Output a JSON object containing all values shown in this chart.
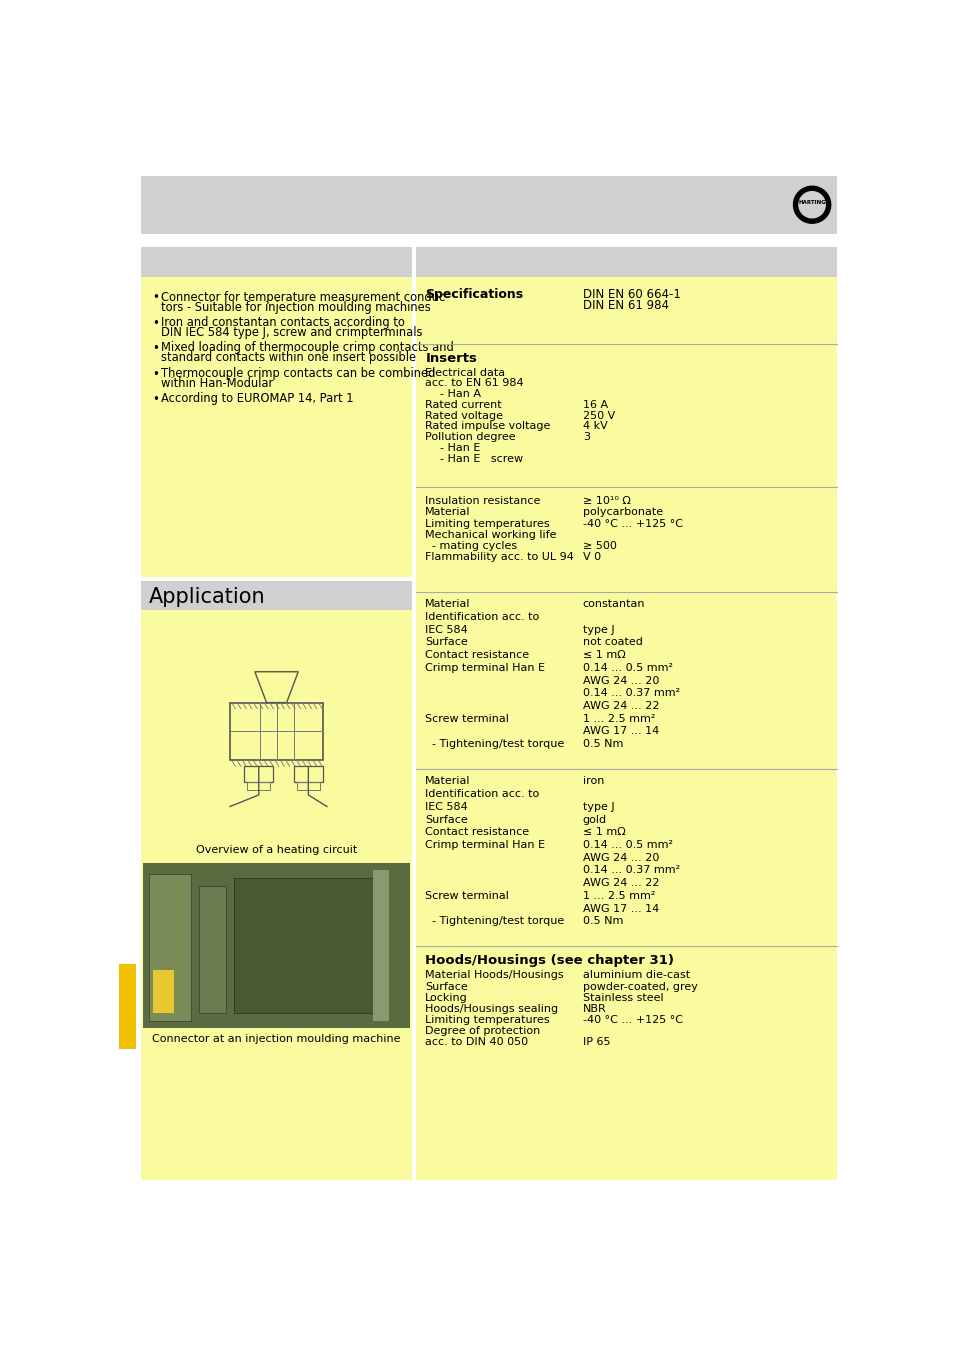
{
  "bg_color": "#ffffff",
  "yellow_bg": "#FAFA9E",
  "gray_bg": "#D0D0D0",
  "features_bullets": [
    "Connector for temperature measurement conduc\ntors - Suitable for injection moulding machines",
    "Iron and constantan contacts according to\nDIN IEC 584 type J, screw and crimpterminals",
    "Mixed loading of thermocouple crimp contacts and\nstandard contacts within one insert possible",
    "Thermocouple crimp contacts can be combined\nwithin Han-Modular",
    "According to EUROMAP 14, Part 1"
  ],
  "specs_label": "Specifications",
  "specs_value": "DIN EN 60 664-1\nDIN EN 61 984",
  "inserts_rows": [
    {
      "label": "Electrical data",
      "value": "",
      "indent": 0
    },
    {
      "label": "acc. to EN 61 984",
      "value": "",
      "indent": 0
    },
    {
      "label": "  - Han A",
      "value": "",
      "indent": 1
    },
    {
      "label": "Rated current",
      "value": "16 A",
      "indent": 0
    },
    {
      "label": "Rated voltage",
      "value": "250 V",
      "indent": 0
    },
    {
      "label": "Rated impulse voltage",
      "value": "4 kV",
      "indent": 0
    },
    {
      "label": "Pollution degree",
      "value": "3",
      "indent": 0
    },
    {
      "label": "  - Han E",
      "value": "",
      "indent": 1
    },
    {
      "label": "  - Han E   screw",
      "value": "",
      "indent": 1
    }
  ],
  "insulation_rows": [
    {
      "label": "Insulation resistance",
      "value": "≥ 10¹⁰ Ω"
    },
    {
      "label": "Material",
      "value": "polycarbonate"
    },
    {
      "label": "Limiting temperatures",
      "value": "-40 °C ... +125 °C"
    },
    {
      "label": "Mechanical working life",
      "value": ""
    },
    {
      "label": "  - mating cycles",
      "value": "≥ 500"
    },
    {
      "label": "Flammability acc. to UL 94",
      "value": "V 0"
    }
  ],
  "constantan_rows": [
    {
      "label": "Material",
      "value": "constantan"
    },
    {
      "label": "Identification acc. to",
      "value": ""
    },
    {
      "label": "IEC 584",
      "value": "type J"
    },
    {
      "label": "Surface",
      "value": "not coated"
    },
    {
      "label": "Contact resistance",
      "value": "≤ 1 mΩ"
    },
    {
      "label": "Crimp terminal Han E",
      "value": "0.14 ... 0.5 mm²"
    },
    {
      "label": "",
      "value": "AWG 24 ... 20"
    },
    {
      "label": "",
      "value": "0.14 ... 0.37 mm²"
    },
    {
      "label": "",
      "value": "AWG 24 ... 22"
    },
    {
      "label": "Screw terminal",
      "value": "1 ... 2.5 mm²"
    },
    {
      "label": "",
      "value": "AWG 17 ... 14"
    },
    {
      "label": "  - Tightening/test torque",
      "value": "0.5 Nm"
    }
  ],
  "iron_rows": [
    {
      "label": "Material",
      "value": "iron"
    },
    {
      "label": "Identification acc. to",
      "value": ""
    },
    {
      "label": "IEC 584",
      "value": "type J"
    },
    {
      "label": "Surface",
      "value": "gold"
    },
    {
      "label": "Contact resistance",
      "value": "≤ 1 mΩ"
    },
    {
      "label": "Crimp terminal Han E",
      "value": "0.14 ... 0.5 mm²"
    },
    {
      "label": "",
      "value": "AWG 24 ... 20"
    },
    {
      "label": "",
      "value": "0.14 ... 0.37 mm²"
    },
    {
      "label": "",
      "value": "AWG 24 ... 22"
    },
    {
      "label": "Screw terminal",
      "value": "1 ... 2.5 mm²"
    },
    {
      "label": "",
      "value": "AWG 17 ... 14"
    },
    {
      "label": "  - Tightening/test torque",
      "value": "0.5 Nm"
    }
  ],
  "hoods_rows": [
    {
      "label": "Material Hoods/Housings",
      "value": "aluminium die-cast"
    },
    {
      "label": "Surface",
      "value": "powder-coated, grey"
    },
    {
      "label": "Locking",
      "value": "Stainless steel"
    },
    {
      "label": "Hoods/Housings sealing",
      "value": "NBR"
    },
    {
      "label": "Limiting temperatures",
      "value": "-40 °C ... +125 °C"
    },
    {
      "label": "Degree of protection",
      "value": ""
    },
    {
      "label": "acc. to DIN 40 050",
      "value": "IP 65"
    }
  ],
  "application_label": "Application",
  "caption1": "Overview of a heating circuit",
  "caption2": "Connector at an injection moulding machine",
  "hoods_title": "Hoods/Housings (see chapter 31)",
  "inserts_title": "Inserts"
}
